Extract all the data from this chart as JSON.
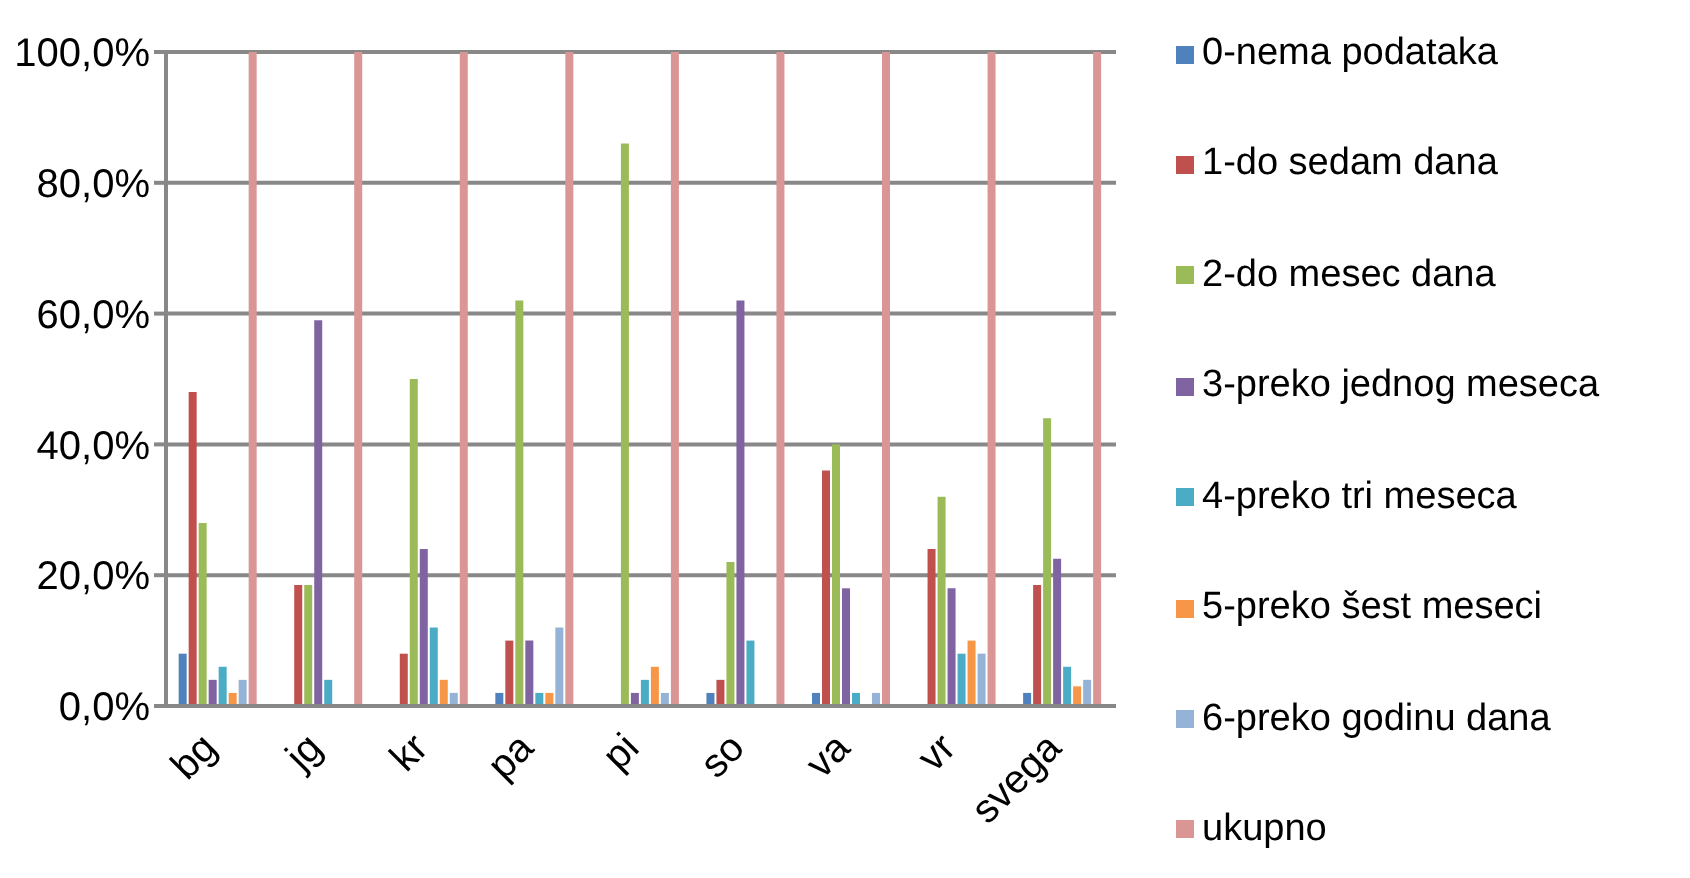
{
  "chart_data": {
    "type": "bar",
    "categories": [
      "bg",
      "jg",
      "kr",
      "pa",
      "pi",
      "so",
      "va",
      "vr",
      "svega"
    ],
    "series": [
      {
        "name": "0-nema podataka",
        "color": "#4f81bd",
        "values": [
          8,
          0,
          0,
          2,
          0,
          2,
          2,
          0,
          2
        ]
      },
      {
        "name": "1-do sedam dana",
        "color": "#c0504d",
        "values": [
          48,
          18.5,
          8,
          10,
          0,
          4,
          36,
          24,
          18.5
        ]
      },
      {
        "name": "2-do mesec dana",
        "color": "#9bbb59",
        "values": [
          28,
          18.5,
          50,
          62,
          86,
          22,
          40,
          32,
          44
        ]
      },
      {
        "name": "3-preko jednog meseca",
        "color": "#8064a2",
        "values": [
          4,
          59,
          24,
          10,
          2,
          62,
          18,
          18,
          22.5
        ]
      },
      {
        "name": "4-preko tri meseca",
        "color": "#4bacc6",
        "values": [
          6,
          4,
          12,
          2,
          4,
          10,
          2,
          8,
          6
        ]
      },
      {
        "name": "5-preko šest meseci",
        "color": "#f79646",
        "values": [
          2,
          0,
          4,
          2,
          6,
          0,
          0,
          10,
          3
        ]
      },
      {
        "name": "6-preko godinu dana",
        "color": "#95b3d7",
        "values": [
          4,
          0,
          2,
          12,
          2,
          0,
          2,
          8,
          4
        ]
      },
      {
        "name": "ukupno",
        "color": "#d99694",
        "values": [
          100,
          100,
          100,
          100,
          100,
          100,
          100,
          100,
          100
        ]
      }
    ],
    "ylim": [
      0,
      100
    ],
    "yticks": [
      {
        "value": 0,
        "label": "0,0%"
      },
      {
        "value": 20,
        "label": "20,0%"
      },
      {
        "value": 40,
        "label": "40,0%"
      },
      {
        "value": 60,
        "label": "60,0%"
      },
      {
        "value": 80,
        "label": "80,0%"
      },
      {
        "value": 100,
        "label": "100,0%"
      }
    ],
    "grid": "y",
    "legend": "right"
  }
}
